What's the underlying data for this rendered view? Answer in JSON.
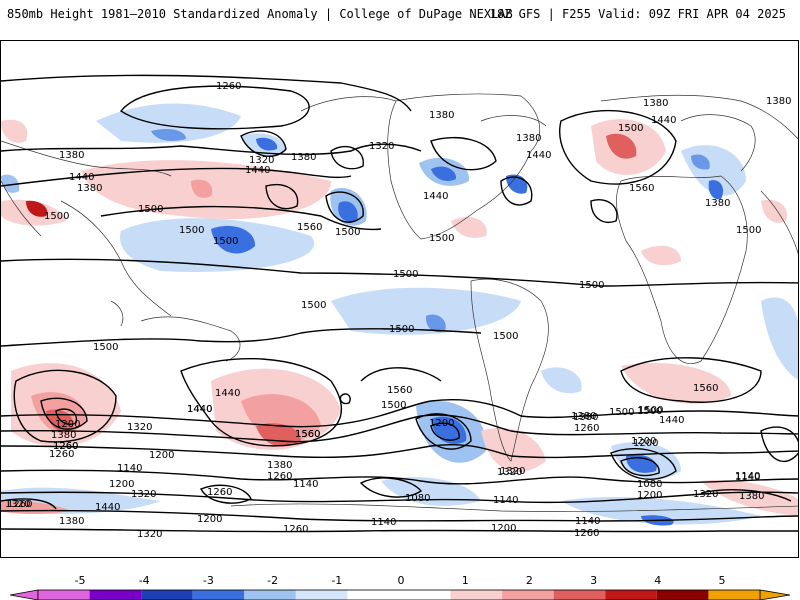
{
  "header": {
    "title": "850mb Height 1981–2010 Standardized Anomaly | College of DuPage NEXLAB",
    "run_info": "18Z GFS | F255 Valid: 09Z FRI APR 04 2025"
  },
  "contour_labels": [
    "1260",
    "1380",
    "1380",
    "1380",
    "1380",
    "1440",
    "1440",
    "1500",
    "1500",
    "1500",
    "1500",
    "1500",
    "1320",
    "1380",
    "1320",
    "1440",
    "1560",
    "1500",
    "1500",
    "1440",
    "1380",
    "1380",
    "1500",
    "1440",
    "1560",
    "1380",
    "1500",
    "1500",
    "1500",
    "1500",
    "1500",
    "1500",
    "1440",
    "1500",
    "1560",
    "1560",
    "1500",
    "1440",
    "1380",
    "1260",
    "1200",
    "1320",
    "1200",
    "1260",
    "1380",
    "1320",
    "1260",
    "1560",
    "1380",
    "1260",
    "1140",
    "1200",
    "1140",
    "1320",
    "1260",
    "1500",
    "1380",
    "1440",
    "1320",
    "1200",
    "1260",
    "1080",
    "1200",
    "1140",
    "1320",
    "1140",
    "1200",
    "1140",
    "1260",
    "1380",
    "1500",
    "1440",
    "1260",
    "1200",
    "1080",
    "1200",
    "1320",
    "1380",
    "1140",
    "1440",
    "1560",
    "1320",
    "1200",
    "1140",
    "1260"
  ],
  "colorbar": {
    "ticks": [
      "-5",
      "-4",
      "-3",
      "-2",
      "-1",
      "0",
      "1",
      "2",
      "3",
      "4",
      "5"
    ],
    "colors": [
      "#e066e0",
      "#7a00c8",
      "#1c3fb3",
      "#3a6fe0",
      "#9fc3f0",
      "#d6e6fa",
      "#ffffff",
      "#ffffff",
      "#f9d0d0",
      "#f2a0a0",
      "#e06060",
      "#c01818",
      "#8a0000",
      "#f0a000"
    ]
  }
}
